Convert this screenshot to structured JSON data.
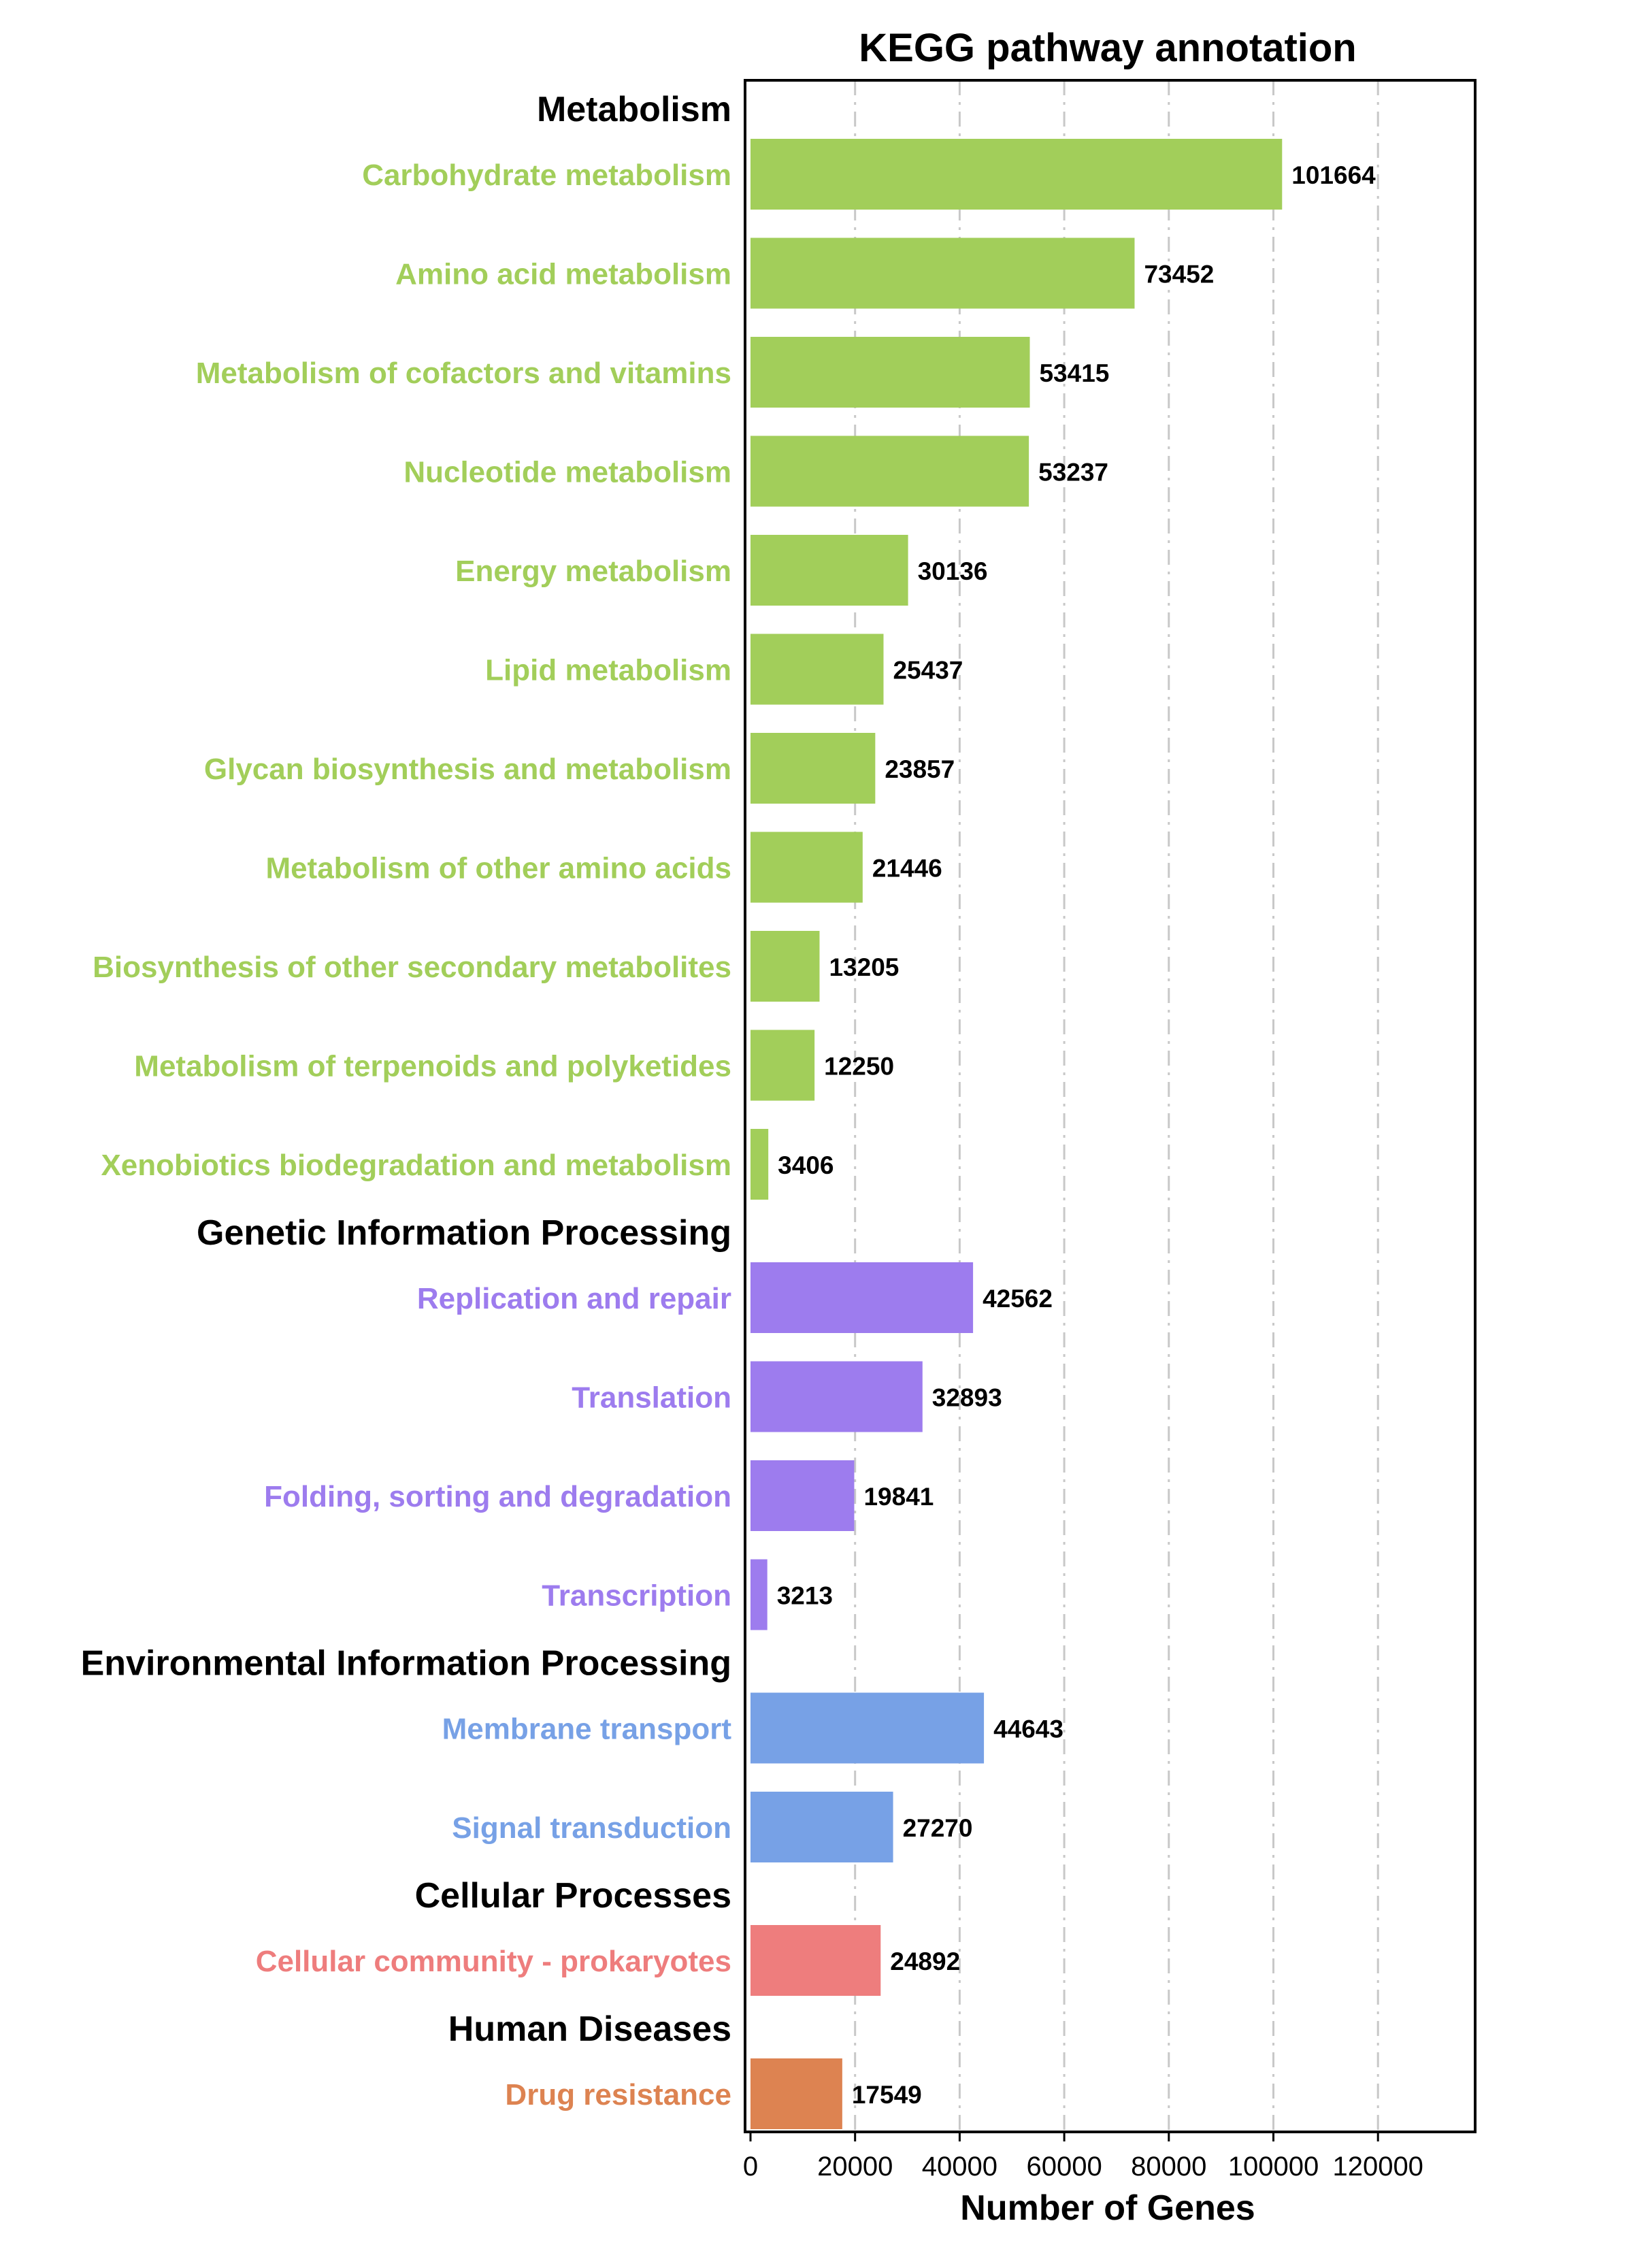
{
  "chart_data": {
    "type": "bar",
    "orientation": "horizontal",
    "title": "KEGG pathway annotation",
    "xlabel": "Number of Genes",
    "ylabel": "",
    "xlim": [
      0,
      140000
    ],
    "xticks": [
      0,
      20000,
      40000,
      60000,
      80000,
      100000,
      120000
    ],
    "grid": "vertical dashed",
    "legend": "none",
    "groups": [
      {
        "name": "Metabolism",
        "color": "#a2ce5a",
        "items": [
          {
            "label": "Carbohydrate metabolism",
            "value": 101664
          },
          {
            "label": "Amino acid metabolism",
            "value": 73452
          },
          {
            "label": "Metabolism of cofactors and vitamins",
            "value": 53415
          },
          {
            "label": "Nucleotide metabolism",
            "value": 53237
          },
          {
            "label": "Energy metabolism",
            "value": 30136
          },
          {
            "label": "Lipid metabolism",
            "value": 25437
          },
          {
            "label": "Glycan biosynthesis and metabolism",
            "value": 23857
          },
          {
            "label": "Metabolism of other amino acids",
            "value": 21446
          },
          {
            "label": "Biosynthesis of other secondary metabolites",
            "value": 13205
          },
          {
            "label": "Metabolism of terpenoids and polyketides",
            "value": 12250
          },
          {
            "label": "Xenobiotics biodegradation and metabolism",
            "value": 3406
          }
        ]
      },
      {
        "name": "Genetic Information Processing",
        "color": "#9d7cee",
        "items": [
          {
            "label": "Replication and repair",
            "value": 42562
          },
          {
            "label": "Translation",
            "value": 32893
          },
          {
            "label": "Folding, sorting and degradation",
            "value": 19841
          },
          {
            "label": "Transcription",
            "value": 3213
          }
        ]
      },
      {
        "name": "Environmental Information Processing",
        "color": "#77a1e6",
        "items": [
          {
            "label": "Membrane transport",
            "value": 44643
          },
          {
            "label": "Signal transduction",
            "value": 27270
          }
        ]
      },
      {
        "name": "Cellular Processes",
        "color": "#ee7d7d",
        "items": [
          {
            "label": "Cellular community - prokaryotes",
            "value": 24892
          }
        ]
      },
      {
        "name": "Human Diseases",
        "color": "#dd8351",
        "items": [
          {
            "label": "Drug resistance",
            "value": 17549
          }
        ]
      }
    ]
  }
}
